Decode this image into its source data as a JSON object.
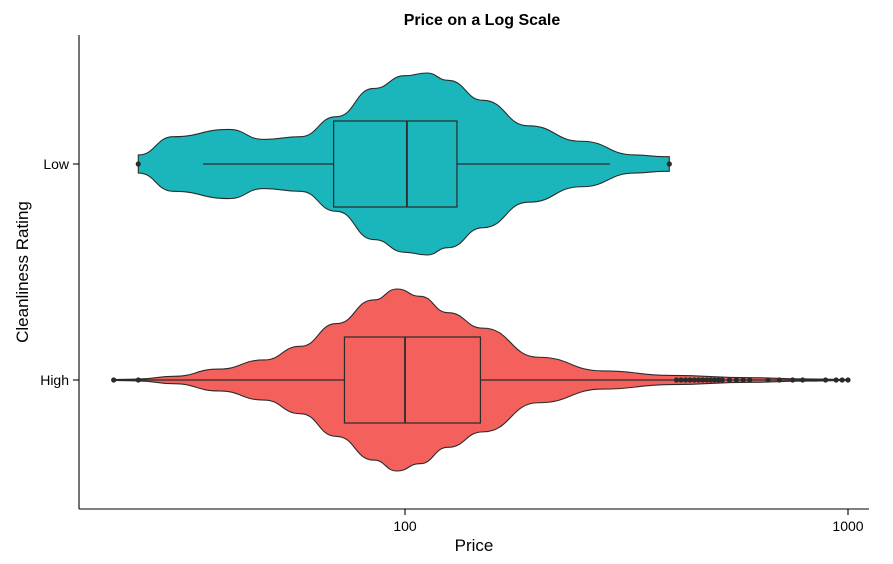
{
  "chart_data": {
    "type": "violin",
    "title": "Price on a Log Scale",
    "xlabel": "Price",
    "ylabel": "Cleanliness Rating",
    "x_scale": "log10",
    "xlim": [
      20,
      1150
    ],
    "x_ticks": [
      100,
      1000
    ],
    "x_tick_labels": [
      "100",
      "1000"
    ],
    "categories": [
      "Low",
      "High"
    ],
    "grid": false,
    "legend": "none",
    "groups": [
      {
        "category": "Low",
        "color": "#1AB6BC",
        "range": [
          25,
          395
        ],
        "box": {
          "whisker_low": 35,
          "q1": 69,
          "median": 101,
          "q3": 131,
          "whisker_high": 290
        },
        "outliers": [
          25,
          395
        ],
        "density": [
          [
            25,
            0.1
          ],
          [
            30,
            0.3
          ],
          [
            40,
            0.38
          ],
          [
            48,
            0.27
          ],
          [
            58,
            0.3
          ],
          [
            70,
            0.52
          ],
          [
            85,
            0.83
          ],
          [
            100,
            0.97
          ],
          [
            112,
            1.0
          ],
          [
            125,
            0.92
          ],
          [
            150,
            0.7
          ],
          [
            190,
            0.42
          ],
          [
            250,
            0.25
          ],
          [
            330,
            0.1
          ],
          [
            385,
            0.08
          ],
          [
            395,
            0.08
          ]
        ]
      },
      {
        "category": "High",
        "color": "#F4605C",
        "range": [
          22,
          1000
        ],
        "box": {
          "whisker_low": 28,
          "q1": 73,
          "median": 100,
          "q3": 148,
          "whisker_high": 410
        },
        "outliers": [
          22,
          25,
          410,
          420,
          430,
          440,
          450,
          460,
          470,
          480,
          490,
          500,
          510,
          520,
          540,
          560,
          580,
          600,
          660,
          700,
          750,
          790,
          890,
          940,
          970,
          1000
        ],
        "density": [
          [
            22,
            0.005
          ],
          [
            25,
            0.01
          ],
          [
            30,
            0.04
          ],
          [
            38,
            0.12
          ],
          [
            48,
            0.22
          ],
          [
            58,
            0.37
          ],
          [
            70,
            0.62
          ],
          [
            85,
            0.88
          ],
          [
            96,
            1.0
          ],
          [
            108,
            0.92
          ],
          [
            125,
            0.74
          ],
          [
            150,
            0.57
          ],
          [
            200,
            0.25
          ],
          [
            280,
            0.1
          ],
          [
            400,
            0.05
          ],
          [
            600,
            0.025
          ],
          [
            800,
            0.012
          ],
          [
            1000,
            0.005
          ]
        ]
      }
    ]
  }
}
